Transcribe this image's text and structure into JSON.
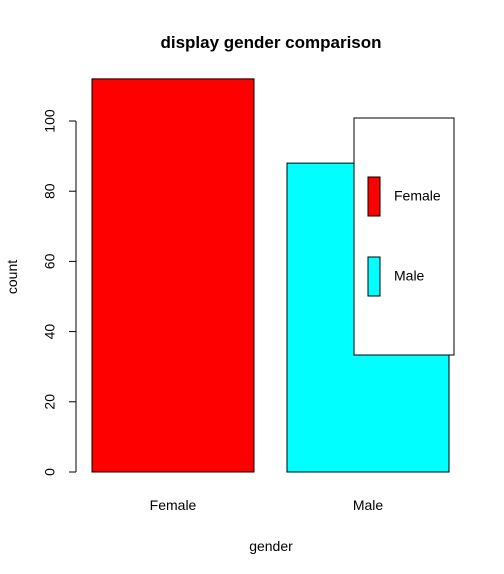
{
  "chart_data": {
    "type": "bar",
    "title": "display gender comparison",
    "xlabel": "gender",
    "ylabel": "count",
    "categories": [
      "Female",
      "Male"
    ],
    "values": [
      112,
      88
    ],
    "colors": [
      "#ff0000",
      "#00ffff"
    ],
    "ylim": [
      0,
      112
    ],
    "yticks": [
      0,
      20,
      40,
      60,
      80,
      100
    ],
    "grid": false,
    "legend": {
      "placement": "right",
      "entries": [
        {
          "label": "Female",
          "color": "#ff0000"
        },
        {
          "label": "Male",
          "color": "#00ffff"
        }
      ]
    }
  }
}
